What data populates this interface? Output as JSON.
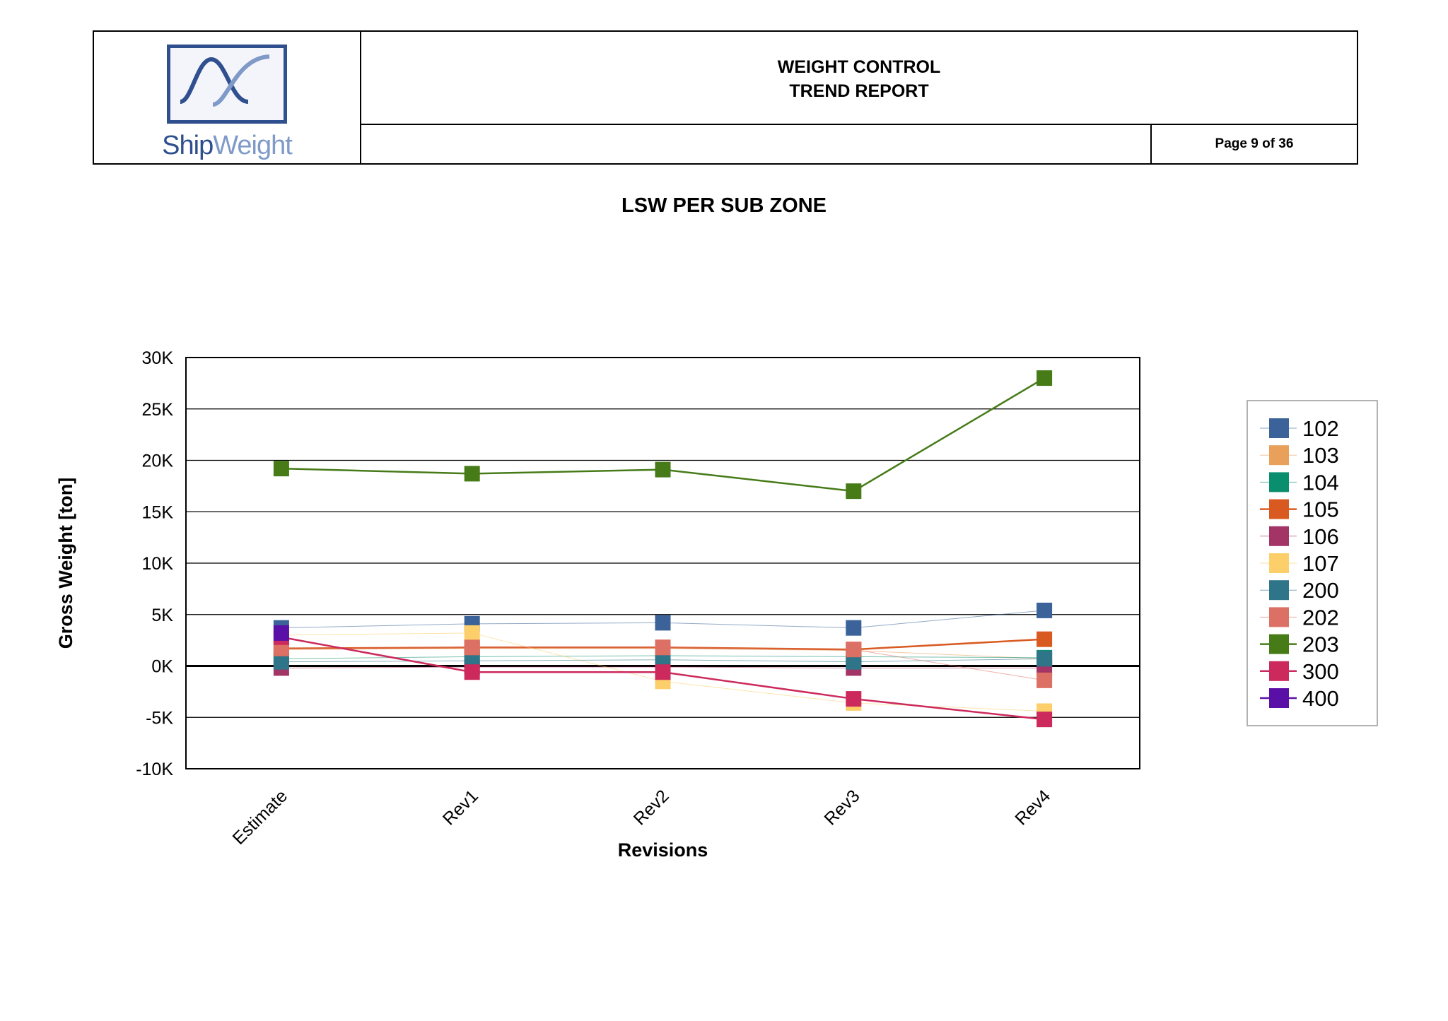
{
  "header": {
    "logo_text_part1": "Ship",
    "logo_text_part2": "Weight",
    "title_line1": "WEIGHT CONTROL",
    "title_line2": "TREND REPORT",
    "page": "Page 9 of 36"
  },
  "report_title": "LSW PER SUB ZONE",
  "chart_data": {
    "type": "line",
    "title": "LSW PER SUB ZONE",
    "xlabel": "Revisions",
    "ylabel": "Gross Weight [ton]",
    "categories": [
      "Estimate",
      "Rev1",
      "Rev2",
      "Rev3",
      "Rev4"
    ],
    "ylim": [
      -10000,
      30000
    ],
    "yticks": [
      30000,
      25000,
      20000,
      15000,
      10000,
      5000,
      0,
      -5000,
      -10000
    ],
    "ytick_labels": [
      "30K",
      "25K",
      "20K",
      "15K",
      "10K",
      "5K",
      "0K",
      "-5K",
      "-10K"
    ],
    "grid": true,
    "legend_position": "right",
    "series": [
      {
        "name": "102",
        "color": "#3b6399",
        "values": [
          3700,
          4100,
          4200,
          3700,
          5400
        ]
      },
      {
        "name": "103",
        "color": "#e8a05a",
        "values": [
          1600,
          1700,
          1700,
          1500,
          700
        ]
      },
      {
        "name": "104",
        "color": "#0a8f6e",
        "values": [
          700,
          900,
          1000,
          900,
          800
        ]
      },
      {
        "name": "105",
        "color": "#d95a20",
        "values": [
          1700,
          1800,
          1800,
          1600,
          2600
        ]
      },
      {
        "name": "106",
        "color": "#a33466",
        "values": [
          -200,
          -100,
          -100,
          -200,
          -200
        ]
      },
      {
        "name": "107",
        "color": "#fccf6a",
        "values": [
          3000,
          3200,
          -1500,
          -3600,
          -4400
        ]
      },
      {
        "name": "200",
        "color": "#2e7589",
        "values": [
          400,
          500,
          600,
          400,
          700
        ]
      },
      {
        "name": "202",
        "color": "#dd7064",
        "values": [
          1700,
          1800,
          1800,
          1600,
          -1400
        ]
      },
      {
        "name": "203",
        "color": "#467b18",
        "values": [
          19200,
          18700,
          19100,
          17000,
          28000
        ]
      },
      {
        "name": "300",
        "color": "#cc2a5c",
        "values": [
          2800,
          -600,
          -600,
          -3200,
          -5200
        ]
      },
      {
        "name": "400",
        "color": "#5a10a6",
        "values": [
          3200,
          null,
          null,
          null,
          null
        ]
      }
    ]
  }
}
